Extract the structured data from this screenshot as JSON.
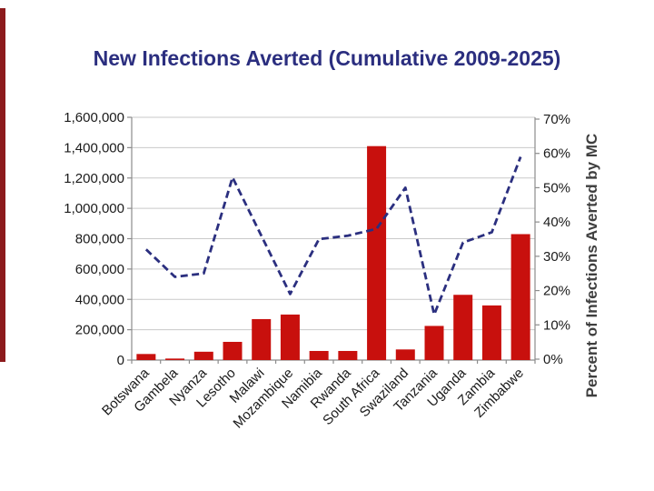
{
  "title": "New Infections Averted (Cumulative 2009-2025)",
  "chart_data": {
    "type": "bar",
    "subtype": "bar-line-combo",
    "title": "New Infections Averted (Cumulative 2009-2025)",
    "categories": [
      "Botswana",
      "Gambela",
      "Nyanza",
      "Lesotho",
      "Malawi",
      "Mozambique",
      "Namibia",
      "Rwanda",
      "South Africa",
      "Swaziland",
      "Tanzania",
      "Uganda",
      "Zambia",
      "Zimbabwe"
    ],
    "series": [
      {
        "name": "New infections averted (cumulative)",
        "type": "bar",
        "axis": "left",
        "values": [
          40000,
          10000,
          55000,
          120000,
          270000,
          300000,
          60000,
          60000,
          1410000,
          70000,
          225000,
          430000,
          360000,
          830000
        ]
      },
      {
        "name": "Percent of Infections Averted by MC",
        "type": "line",
        "style": "dashed",
        "axis": "right",
        "values_percent": [
          32,
          24,
          25,
          53,
          36,
          19,
          35,
          36,
          38,
          50,
          13,
          34,
          37,
          59
        ]
      }
    ],
    "left_axis": {
      "min": 0,
      "max": 1600000,
      "step": 200000,
      "tick_labels": [
        "0",
        "200,000",
        "400,000",
        "600,000",
        "800,000",
        "1,000,000",
        "1,200,000",
        "1,400,000",
        "1,600,000"
      ]
    },
    "right_axis": {
      "min": 0,
      "max": 70,
      "step": 10,
      "tick_labels": [
        "0%",
        "10%",
        "20%",
        "30%",
        "40%",
        "50%",
        "60%",
        "70%"
      ],
      "label": "Percent of Infections Averted by MC"
    },
    "grid": true,
    "legend": "none"
  },
  "colors": {
    "title": "#2b2e7f",
    "bar": "#c8100d",
    "line": "#2b2f7f",
    "gridline": "#c9c9c9",
    "axis": "#8c8c8c",
    "tick_text": "#1a1a1a",
    "right_axis_label": "#3f3f3f",
    "left_stripe": "#8c1a1c"
  }
}
